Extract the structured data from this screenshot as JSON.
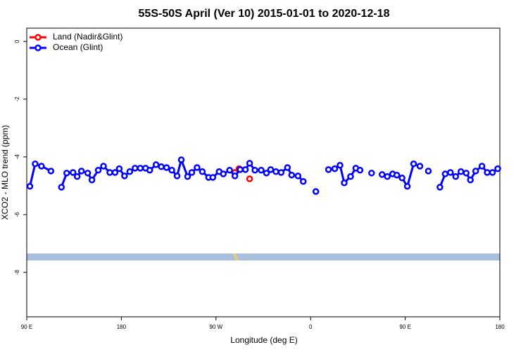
{
  "chart_data": {
    "type": "line",
    "title": "55S-50S April (Ver 10)   2015-01-01 to 2020-12-18",
    "x_label": "Longitude (deg E)",
    "y_label": "XCO2 - MLO trend (ppm)",
    "xlim": [
      90,
      540
    ],
    "ylim": [
      -9.54,
      0.46
    ],
    "xticks": [
      {
        "value": 90,
        "label": "90 E"
      },
      {
        "value": 180,
        "label": "180"
      },
      {
        "value": 270,
        "label": "90 W"
      },
      {
        "value": 360,
        "label": "0"
      },
      {
        "value": 450,
        "label": "90 E"
      },
      {
        "value": 540,
        "label": "180"
      }
    ],
    "yticks": [
      0,
      -2,
      -4,
      -6,
      -8
    ],
    "legend": "topleft",
    "series": [
      {
        "name": "Land (Nadir&Glint)",
        "color": "#ff0000",
        "x": [
          288,
          292,
          297,
          302
        ],
        "values": [
          -4.54,
          -4.41,
          null,
          -4.76
        ]
      },
      {
        "name": "Ocean (Glint)",
        "color": "#0000ff",
        "x": [
          93,
          98,
          104,
          113,
          118,
          123,
          128,
          134,
          138,
          142,
          148,
          152,
          158,
          163,
          169,
          174,
          178,
          183,
          188,
          193,
          198,
          203,
          207,
          213,
          218,
          223,
          228,
          233,
          237,
          243,
          247,
          252,
          257,
          263,
          267,
          273,
          277,
          283,
          288,
          293,
          298,
          302,
          307,
          313,
          318,
          322,
          327,
          332,
          338,
          342,
          348,
          353,
          358,
          365,
          370,
          377,
          383,
          388,
          392,
          398,
          403,
          407,
          412,
          418,
          423,
          428,
          433,
          438,
          442,
          447,
          452,
          458,
          464,
          468,
          472,
          477,
          483,
          488,
          493,
          498,
          503,
          508,
          512,
          517,
          523,
          528,
          533,
          538
        ],
        "values": [
          -5.02,
          -4.24,
          -4.32,
          -4.49,
          null,
          -5.05,
          -4.56,
          -4.54,
          -4.68,
          -4.49,
          -4.56,
          -4.8,
          -4.46,
          -4.32,
          -4.54,
          -4.54,
          -4.41,
          -4.66,
          -4.51,
          -4.39,
          -4.39,
          -4.39,
          -4.46,
          -4.27,
          -4.34,
          -4.37,
          -4.46,
          -4.66,
          -4.1,
          -4.68,
          -4.54,
          -4.37,
          -4.51,
          -4.71,
          -4.71,
          -4.51,
          -4.59,
          -4.46,
          -4.66,
          -4.44,
          -4.44,
          -4.22,
          -4.46,
          -4.46,
          -4.56,
          -4.44,
          -4.51,
          -4.54,
          -4.37,
          -4.63,
          -4.66,
          -4.85,
          null,
          -5.2,
          null,
          -4.44,
          -4.41,
          -4.29,
          -4.9,
          -4.68,
          -4.39,
          -4.46,
          null,
          -4.56,
          null,
          -4.61,
          -4.68,
          -4.59,
          -4.63,
          -4.73,
          -5.02,
          -4.24,
          -4.32,
          null,
          -4.49,
          null,
          -5.05,
          -4.59,
          -4.54,
          -4.68,
          -4.51,
          -4.56,
          -4.8,
          -4.49,
          -4.32,
          -4.54,
          -4.54,
          -4.41
        ]
      }
    ]
  }
}
